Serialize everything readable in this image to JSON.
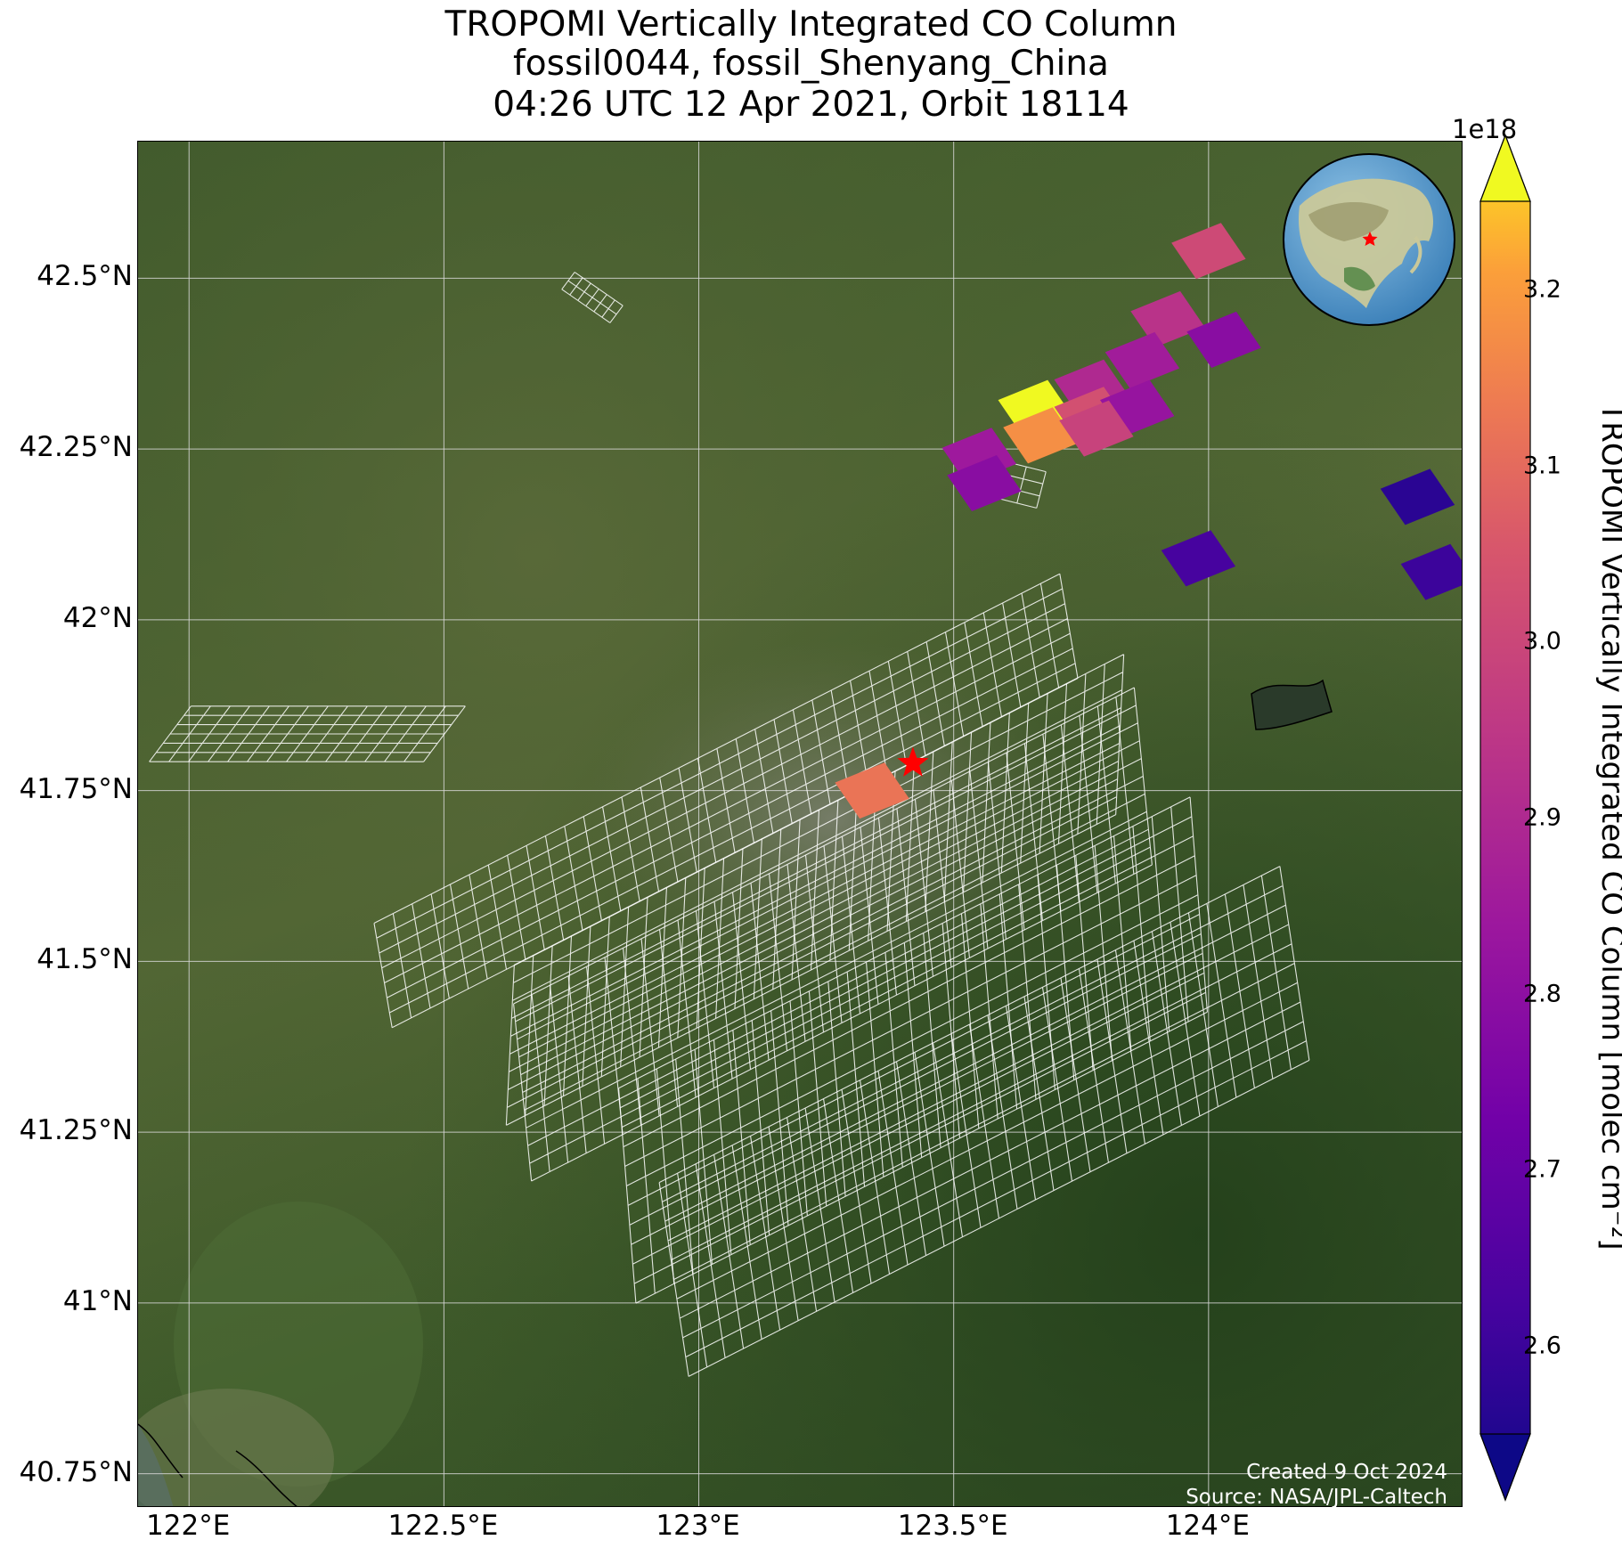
{
  "title": {
    "line1": "TROPOMI Vertically Integrated CO Column",
    "line2": "fossil0044, fossil_Shenyang_China",
    "line3": "04:26 UTC 12 Apr 2021, Orbit 18114"
  },
  "map": {
    "lon_ticks": [
      "122°E",
      "122.5°E",
      "123°E",
      "123.5°E",
      "124°E"
    ],
    "lat_ticks": [
      "42.5°N",
      "42.25°N",
      "42°N",
      "41.75°N",
      "41.5°N",
      "41.25°N",
      "41°N",
      "40.75°N"
    ],
    "lon_range": [
      121.9,
      124.5
    ],
    "lat_range": [
      40.7,
      42.7
    ],
    "gridlines": true,
    "target_marker": {
      "lon": 123.42,
      "lat": 41.79,
      "color": "#ff0000",
      "icon": "star-icon"
    },
    "inset_globe": {
      "description_icon": "globe-icon",
      "marker_color": "#ff0000"
    },
    "credits": {
      "created": "Created 9 Oct 2024",
      "source": "Source: NASA/JPL-Caltech"
    }
  },
  "colorbar": {
    "label": "TROPOMI Vertically Integrated CO Column [molec cm⁻²]",
    "exponent": "1e18",
    "ticks": [
      "2.6",
      "2.7",
      "2.8",
      "2.9",
      "3.0",
      "3.1",
      "3.2"
    ],
    "range": [
      2.55,
      3.25
    ],
    "colormap": "plasma",
    "extend": "both"
  },
  "chart_data": {
    "type": "heatmap",
    "title": "TROPOMI Vertically Integrated CO Column",
    "subtitle": "fossil0044, fossil_Shenyang_China; 04:26 UTC 12 Apr 2021, Orbit 18114",
    "xlabel": "",
    "ylabel": "",
    "colorbar_label": "TROPOMI Vertically Integrated CO Column [molec cm⁻²]",
    "units_scale": 1e+18,
    "pixels": [
      {
        "lon": 124.0,
        "lat": 42.54,
        "value": 3.0
      },
      {
        "lon": 123.92,
        "lat": 42.44,
        "value": 2.93
      },
      {
        "lon": 124.03,
        "lat": 42.41,
        "value": 2.8
      },
      {
        "lon": 123.87,
        "lat": 42.38,
        "value": 2.86
      },
      {
        "lon": 123.77,
        "lat": 42.34,
        "value": 2.9
      },
      {
        "lon": 123.66,
        "lat": 42.31,
        "value": 3.25
      },
      {
        "lon": 123.77,
        "lat": 42.3,
        "value": 3.02
      },
      {
        "lon": 123.86,
        "lat": 42.31,
        "value": 2.83
      },
      {
        "lon": 123.67,
        "lat": 42.27,
        "value": 3.15
      },
      {
        "lon": 123.78,
        "lat": 42.28,
        "value": 2.98
      },
      {
        "lon": 123.55,
        "lat": 42.24,
        "value": 2.85
      },
      {
        "lon": 123.56,
        "lat": 42.2,
        "value": 2.8
      },
      {
        "lon": 124.41,
        "lat": 42.18,
        "value": 2.6
      },
      {
        "lon": 123.98,
        "lat": 42.09,
        "value": 2.65
      },
      {
        "lon": 124.45,
        "lat": 42.07,
        "value": 2.63
      },
      {
        "lon": 123.34,
        "lat": 41.75,
        "value": 3.1
      }
    ]
  }
}
